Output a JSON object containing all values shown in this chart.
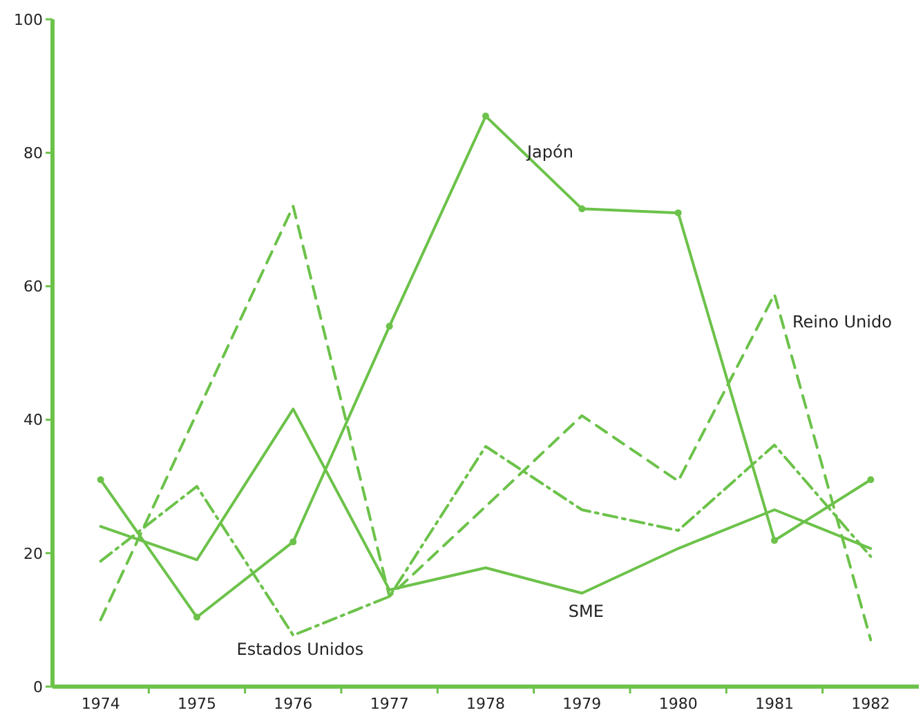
{
  "chart_data": {
    "type": "line",
    "categories": [
      "1974",
      "1975",
      "1976",
      "1977",
      "1978",
      "1979",
      "1980",
      "1981",
      "1982"
    ],
    "ylim": [
      0,
      100
    ],
    "yticks": [
      0,
      20,
      40,
      60,
      80,
      100
    ],
    "grid": false,
    "series": [
      {
        "name": "Japón",
        "color": "#6cc24a",
        "line_style": "solid",
        "marker": "circle",
        "values": [
          31,
          10.4,
          21.7,
          54,
          85.5,
          71.6,
          71,
          21.9,
          31
        ]
      },
      {
        "name": "Reino Unido",
        "color": "#6cc24a",
        "line_style": "dashed",
        "marker": "none",
        "values": [
          10,
          41,
          72,
          13.5,
          27,
          40.6,
          30.8,
          58.8,
          7
        ]
      },
      {
        "name": "Estados Unidos",
        "color": "#6cc24a",
        "line_style": "dashdot",
        "marker": "none",
        "values": [
          18.8,
          30,
          7.7,
          13.5,
          36,
          26.5,
          23.4,
          36.2,
          19.5
        ]
      },
      {
        "name": "SME",
        "color": "#6cc24a",
        "line_style": "solid",
        "marker": "none",
        "values": [
          24,
          19,
          41.6,
          14.5,
          17.8,
          14,
          20.7,
          26.5,
          20.7
        ]
      }
    ]
  }
}
